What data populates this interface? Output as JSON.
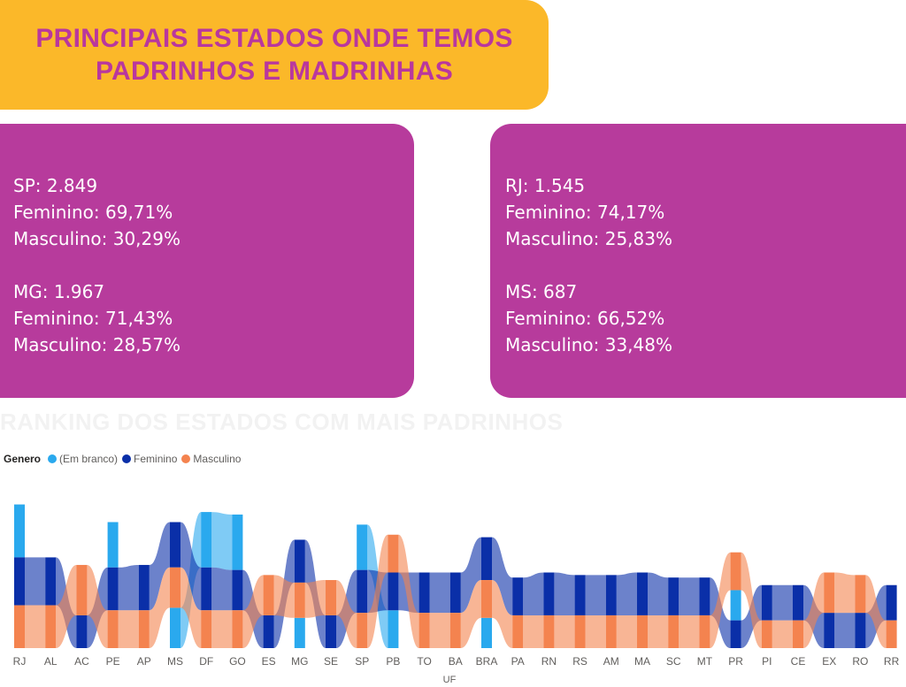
{
  "header": {
    "title_line1": "PRINCIPAIS ESTADOS ONDE TEMOS",
    "title_line2": "PADRINHOS E MADRINHAS"
  },
  "cards": {
    "left": {
      "block1": {
        "state": "SP: 2.849",
        "feminino": "Feminino: 69,71%",
        "masculino": "Masculino: 30,29%"
      },
      "block2": {
        "state": "MG: 1.967",
        "feminino": "Feminino: 71,43%",
        "masculino": "Masculino: 28,57%"
      }
    },
    "right": {
      "block1": {
        "state": "RJ: 1.545",
        "feminino": "Feminino: 74,17%",
        "masculino": "Masculino: 25,83%"
      },
      "block2": {
        "state": "MS: 687",
        "feminino": "Feminino: 66,52%",
        "masculino": "Masculino: 33,48%"
      }
    }
  },
  "section_title": "RANKING DOS ESTADOS COM MAIS PADRINHOS",
  "colors": {
    "title_bg": "#fbb829",
    "title_text": "#b9379e",
    "card_bg": "#b73b9c",
    "em_branco": "#2aa9ee",
    "feminino": "#0a2fa8",
    "masculino": "#f4834f"
  },
  "chart_data": {
    "type": "ribbon",
    "legend": {
      "title": "Genero",
      "items": [
        "(Em branco)",
        "Feminino",
        "Masculino"
      ]
    },
    "xlabel": "UF",
    "categories": [
      "RJ",
      "AL",
      "AC",
      "PE",
      "AP",
      "MS",
      "DF",
      "GO",
      "ES",
      "MG",
      "SE",
      "SP",
      "PB",
      "TO",
      "BA",
      "BRA",
      "PA",
      "RN",
      "RS",
      "AM",
      "MA",
      "SC",
      "MT",
      "PR",
      "PI",
      "CE",
      "EX",
      "RO",
      "RR"
    ],
    "series": [
      {
        "name": "(Em branco)",
        "values": [
          21,
          0,
          0,
          18,
          0,
          16,
          22,
          22,
          0,
          12,
          0,
          18,
          15,
          0,
          0,
          12,
          0,
          0,
          0,
          0,
          0,
          0,
          0,
          12,
          0,
          0,
          0,
          0,
          0
        ]
      },
      {
        "name": "Feminino",
        "values": [
          19,
          19,
          13,
          17,
          18,
          18,
          17,
          16,
          13,
          17,
          13,
          17,
          15,
          16,
          16,
          17,
          15,
          17,
          16,
          16,
          17,
          15,
          15,
          11,
          14,
          14,
          14,
          14,
          14
        ]
      },
      {
        "name": "Masculino",
        "values": [
          17,
          17,
          20,
          15,
          15,
          16,
          15,
          15,
          16,
          14,
          14,
          14,
          15,
          14,
          14,
          15,
          13,
          13,
          13,
          13,
          13,
          13,
          13,
          15,
          11,
          11,
          16,
          15,
          11
        ]
      }
    ]
  }
}
